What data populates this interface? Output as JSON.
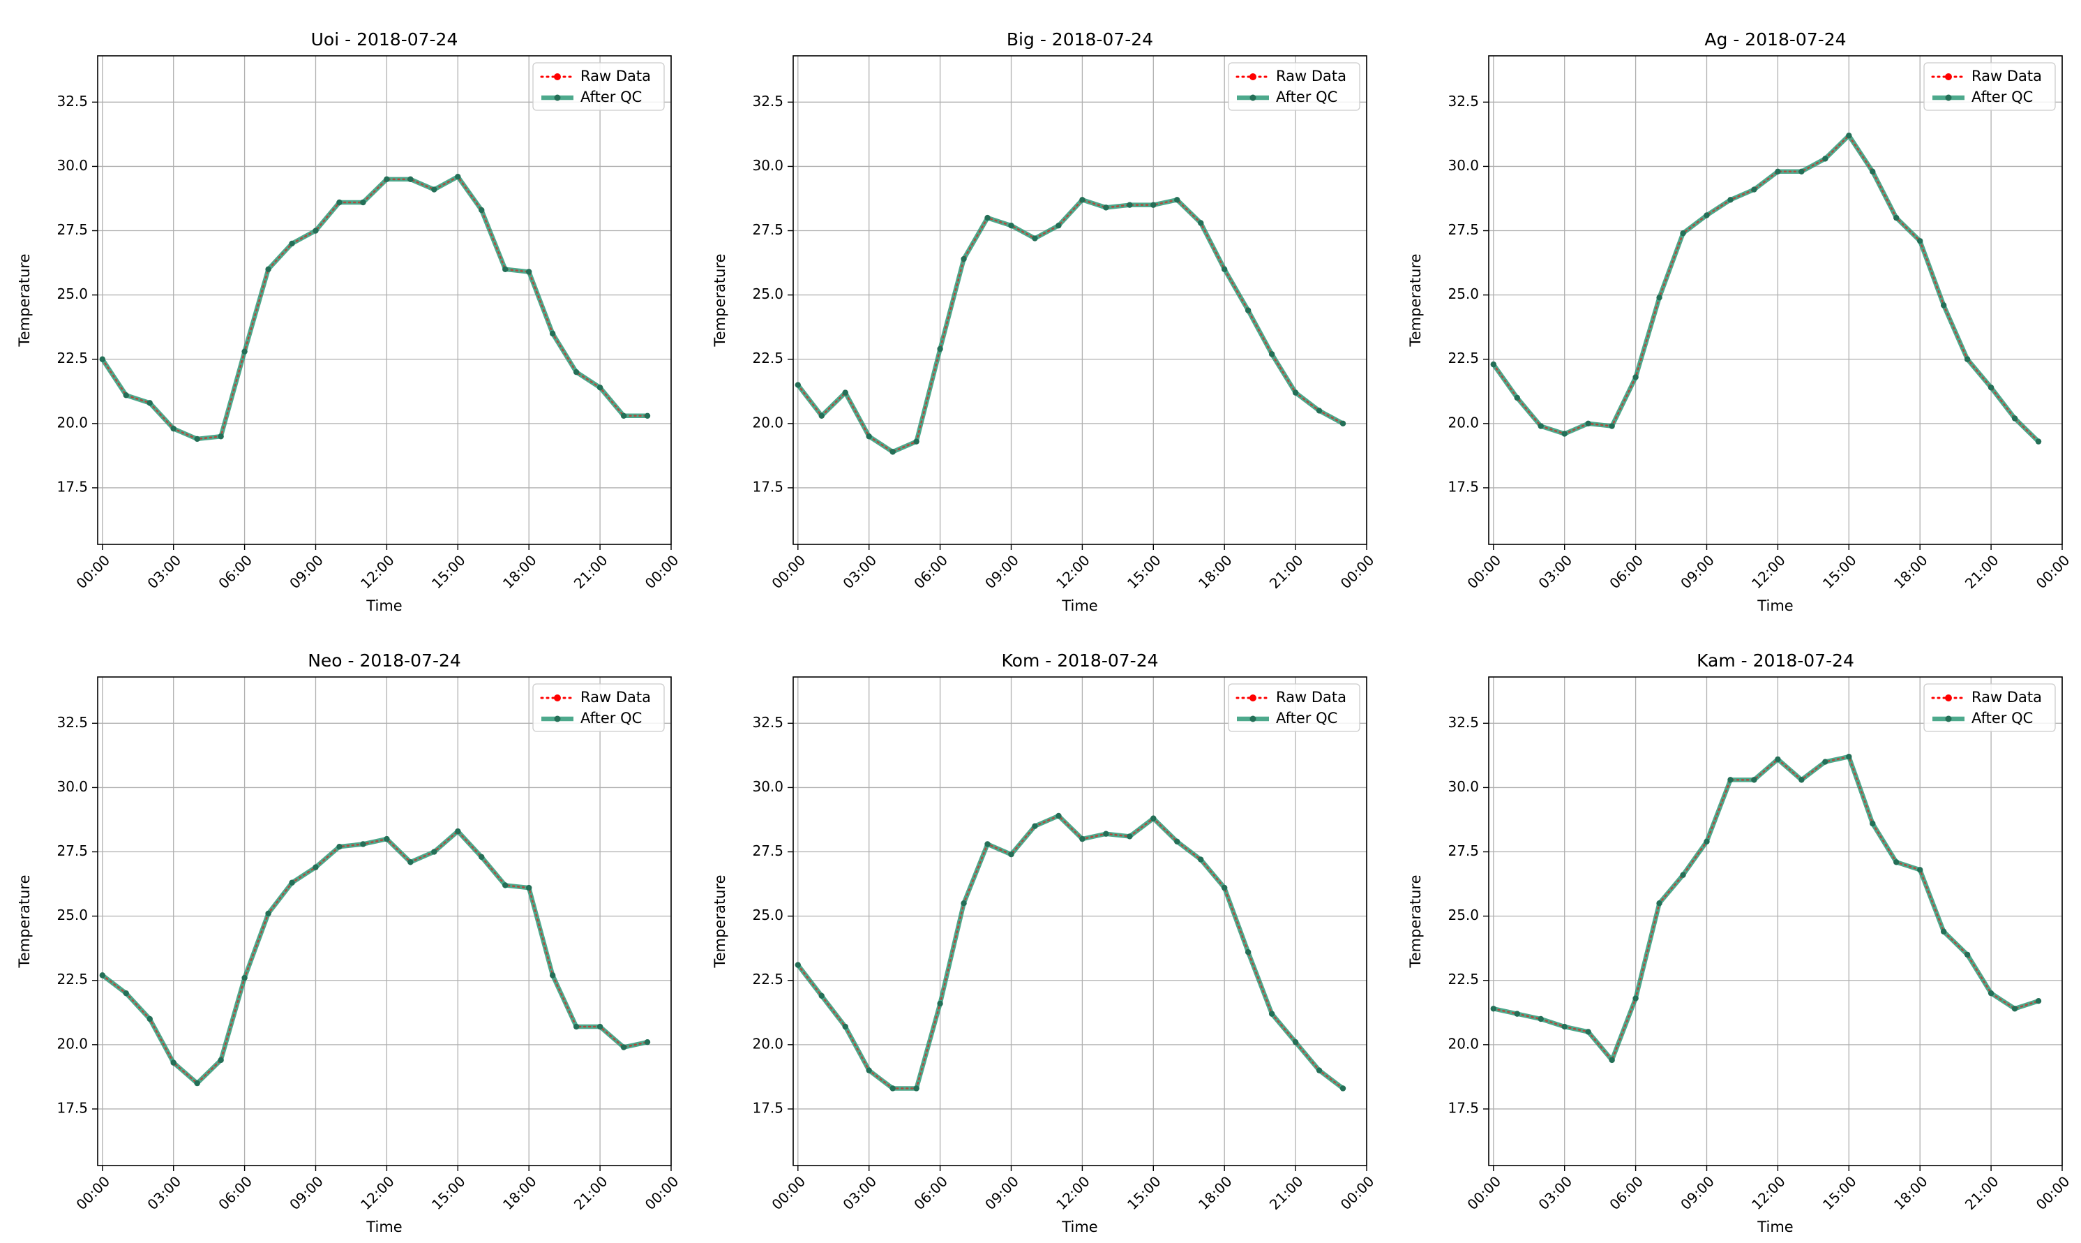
{
  "figure": {
    "colors": {
      "raw": "#ff0000",
      "qc": "#2e9a78",
      "qc_marker": "#246f57",
      "grid": "#b0b0b0",
      "axes": "#000000"
    }
  },
  "chart_data": [
    {
      "type": "line",
      "title": "Uoi - 2018-07-24",
      "xlabel": "Time",
      "ylabel": "Temperature",
      "x_unit": "hour",
      "xlim": [
        -0.2,
        24
      ],
      "ylim": [
        15.3,
        34.3
      ],
      "xticks": [
        0,
        3,
        6,
        9,
        12,
        15,
        18,
        21,
        24
      ],
      "xticklabels": [
        "00:00",
        "03:00",
        "06:00",
        "09:00",
        "12:00",
        "15:00",
        "18:00",
        "21:00",
        "00:00"
      ],
      "yticks": [
        17.5,
        20.0,
        22.5,
        25.0,
        27.5,
        30.0,
        32.5
      ],
      "yticklabels": [
        "17.5",
        "20.0",
        "22.5",
        "25.0",
        "27.5",
        "30.0",
        "32.5"
      ],
      "grid": true,
      "legend": "upper right",
      "x": [
        0,
        1,
        2,
        3,
        4,
        5,
        6,
        7,
        8,
        9,
        10,
        11,
        12,
        13,
        14,
        15,
        16,
        17,
        18,
        19,
        20,
        21,
        22,
        23
      ],
      "series": [
        {
          "name": "Raw Data",
          "values": [
            22.5,
            21.1,
            20.8,
            19.8,
            19.4,
            19.5,
            22.8,
            26.0,
            27.0,
            27.5,
            28.6,
            28.6,
            29.5,
            29.5,
            29.1,
            29.6,
            28.3,
            26.0,
            25.9,
            23.5,
            22.0,
            21.4,
            20.3,
            20.3
          ]
        },
        {
          "name": "After QC",
          "values": [
            22.5,
            21.1,
            20.8,
            19.8,
            19.4,
            19.5,
            22.8,
            26.0,
            27.0,
            27.5,
            28.6,
            28.6,
            29.5,
            29.5,
            29.1,
            29.6,
            28.3,
            26.0,
            25.9,
            23.5,
            22.0,
            21.4,
            20.3,
            20.3
          ]
        }
      ]
    },
    {
      "type": "line",
      "title": "Big - 2018-07-24",
      "xlabel": "Time",
      "ylabel": "Temperature",
      "x_unit": "hour",
      "xlim": [
        -0.2,
        24
      ],
      "ylim": [
        15.3,
        34.3
      ],
      "xticks": [
        0,
        3,
        6,
        9,
        12,
        15,
        18,
        21,
        24
      ],
      "xticklabels": [
        "00:00",
        "03:00",
        "06:00",
        "09:00",
        "12:00",
        "15:00",
        "18:00",
        "21:00",
        "00:00"
      ],
      "yticks": [
        17.5,
        20.0,
        22.5,
        25.0,
        27.5,
        30.0,
        32.5
      ],
      "yticklabels": [
        "17.5",
        "20.0",
        "22.5",
        "25.0",
        "27.5",
        "30.0",
        "32.5"
      ],
      "grid": true,
      "legend": "upper right",
      "x": [
        0,
        1,
        2,
        3,
        4,
        5,
        6,
        7,
        8,
        9,
        10,
        11,
        12,
        13,
        14,
        15,
        16,
        17,
        18,
        19,
        20,
        21,
        22,
        23
      ],
      "series": [
        {
          "name": "Raw Data",
          "values": [
            21.5,
            20.3,
            21.2,
            19.5,
            18.9,
            19.3,
            22.9,
            26.4,
            28.0,
            27.7,
            27.2,
            27.7,
            28.7,
            28.4,
            28.5,
            28.5,
            28.7,
            27.8,
            26.0,
            24.4,
            22.7,
            21.2,
            20.5,
            20.0
          ]
        },
        {
          "name": "After QC",
          "values": [
            21.5,
            20.3,
            21.2,
            19.5,
            18.9,
            19.3,
            22.9,
            26.4,
            28.0,
            27.7,
            27.2,
            27.7,
            28.7,
            28.4,
            28.5,
            28.5,
            28.7,
            27.8,
            26.0,
            24.4,
            22.7,
            21.2,
            20.5,
            20.0
          ]
        }
      ]
    },
    {
      "type": "line",
      "title": "Ag - 2018-07-24",
      "xlabel": "Time",
      "ylabel": "Temperature",
      "x_unit": "hour",
      "xlim": [
        -0.2,
        24
      ],
      "ylim": [
        15.3,
        34.3
      ],
      "xticks": [
        0,
        3,
        6,
        9,
        12,
        15,
        18,
        21,
        24
      ],
      "xticklabels": [
        "00:00",
        "03:00",
        "06:00",
        "09:00",
        "12:00",
        "15:00",
        "18:00",
        "21:00",
        "00:00"
      ],
      "yticks": [
        17.5,
        20.0,
        22.5,
        25.0,
        27.5,
        30.0,
        32.5
      ],
      "yticklabels": [
        "17.5",
        "20.0",
        "22.5",
        "25.0",
        "27.5",
        "30.0",
        "32.5"
      ],
      "grid": true,
      "legend": "upper right",
      "x": [
        0,
        1,
        2,
        3,
        4,
        5,
        6,
        7,
        8,
        9,
        10,
        11,
        12,
        13,
        14,
        15,
        16,
        17,
        18,
        19,
        20,
        21,
        22,
        23
      ],
      "series": [
        {
          "name": "Raw Data",
          "values": [
            22.3,
            21.0,
            19.9,
            19.6,
            20.0,
            19.9,
            21.8,
            24.9,
            27.4,
            28.1,
            28.7,
            29.1,
            29.8,
            29.8,
            30.3,
            31.2,
            29.8,
            28.0,
            27.1,
            24.6,
            22.5,
            21.4,
            20.2,
            19.3
          ]
        },
        {
          "name": "After QC",
          "values": [
            22.3,
            21.0,
            19.9,
            19.6,
            20.0,
            19.9,
            21.8,
            24.9,
            27.4,
            28.1,
            28.7,
            29.1,
            29.8,
            29.8,
            30.3,
            31.2,
            29.8,
            28.0,
            27.1,
            24.6,
            22.5,
            21.4,
            20.2,
            19.3
          ]
        }
      ]
    },
    {
      "type": "line",
      "title": "Neo - 2018-07-24",
      "xlabel": "Time",
      "ylabel": "Temperature",
      "x_unit": "hour",
      "xlim": [
        -0.2,
        24
      ],
      "ylim": [
        15.3,
        34.3
      ],
      "xticks": [
        0,
        3,
        6,
        9,
        12,
        15,
        18,
        21,
        24
      ],
      "xticklabels": [
        "00:00",
        "03:00",
        "06:00",
        "09:00",
        "12:00",
        "15:00",
        "18:00",
        "21:00",
        "00:00"
      ],
      "yticks": [
        17.5,
        20.0,
        22.5,
        25.0,
        27.5,
        30.0,
        32.5
      ],
      "yticklabels": [
        "17.5",
        "20.0",
        "22.5",
        "25.0",
        "27.5",
        "30.0",
        "32.5"
      ],
      "grid": true,
      "legend": "upper right",
      "x": [
        0,
        1,
        2,
        3,
        4,
        5,
        6,
        7,
        8,
        9,
        10,
        11,
        12,
        13,
        14,
        15,
        16,
        17,
        18,
        19,
        20,
        21,
        22,
        23
      ],
      "series": [
        {
          "name": "Raw Data",
          "values": [
            22.7,
            22.0,
            21.0,
            19.3,
            18.5,
            19.4,
            22.6,
            25.1,
            26.3,
            26.9,
            27.7,
            27.8,
            28.0,
            27.1,
            27.5,
            28.3,
            27.3,
            26.2,
            26.1,
            22.7,
            20.7,
            20.7,
            19.9,
            20.1
          ]
        },
        {
          "name": "After QC",
          "values": [
            22.7,
            22.0,
            21.0,
            19.3,
            18.5,
            19.4,
            22.6,
            25.1,
            26.3,
            26.9,
            27.7,
            27.8,
            28.0,
            27.1,
            27.5,
            28.3,
            27.3,
            26.2,
            26.1,
            22.7,
            20.7,
            20.7,
            19.9,
            20.1
          ]
        }
      ]
    },
    {
      "type": "line",
      "title": "Kom - 2018-07-24",
      "xlabel": "Time",
      "ylabel": "Temperature",
      "x_unit": "hour",
      "xlim": [
        -0.2,
        24
      ],
      "ylim": [
        15.3,
        34.3
      ],
      "xticks": [
        0,
        3,
        6,
        9,
        12,
        15,
        18,
        21,
        24
      ],
      "xticklabels": [
        "00:00",
        "03:00",
        "06:00",
        "09:00",
        "12:00",
        "15:00",
        "18:00",
        "21:00",
        "00:00"
      ],
      "yticks": [
        17.5,
        20.0,
        22.5,
        25.0,
        27.5,
        30.0,
        32.5
      ],
      "yticklabels": [
        "17.5",
        "20.0",
        "22.5",
        "25.0",
        "27.5",
        "30.0",
        "32.5"
      ],
      "grid": true,
      "legend": "upper right",
      "x": [
        0,
        1,
        2,
        3,
        4,
        5,
        6,
        7,
        8,
        9,
        10,
        11,
        12,
        13,
        14,
        15,
        16,
        17,
        18,
        19,
        20,
        21,
        22,
        23
      ],
      "series": [
        {
          "name": "Raw Data",
          "values": [
            23.1,
            21.9,
            20.7,
            19.0,
            18.3,
            18.3,
            21.6,
            25.5,
            27.8,
            27.4,
            28.5,
            28.9,
            28.0,
            28.2,
            28.1,
            28.8,
            27.9,
            27.2,
            26.1,
            23.6,
            21.2,
            20.1,
            19.0,
            18.3
          ]
        },
        {
          "name": "After QC",
          "values": [
            23.1,
            21.9,
            20.7,
            19.0,
            18.3,
            18.3,
            21.6,
            25.5,
            27.8,
            27.4,
            28.5,
            28.9,
            28.0,
            28.2,
            28.1,
            28.8,
            27.9,
            27.2,
            26.1,
            23.6,
            21.2,
            20.1,
            19.0,
            18.3
          ]
        }
      ]
    },
    {
      "type": "line",
      "title": "Kam - 2018-07-24",
      "xlabel": "Time",
      "ylabel": "Temperature",
      "x_unit": "hour",
      "xlim": [
        -0.2,
        24
      ],
      "ylim": [
        15.3,
        34.3
      ],
      "xticks": [
        0,
        3,
        6,
        9,
        12,
        15,
        18,
        21,
        24
      ],
      "xticklabels": [
        "00:00",
        "03:00",
        "06:00",
        "09:00",
        "12:00",
        "15:00",
        "18:00",
        "21:00",
        "00:00"
      ],
      "yticks": [
        17.5,
        20.0,
        22.5,
        25.0,
        27.5,
        30.0,
        32.5
      ],
      "yticklabels": [
        "17.5",
        "20.0",
        "22.5",
        "25.0",
        "27.5",
        "30.0",
        "32.5"
      ],
      "grid": true,
      "legend": "upper right",
      "x": [
        0,
        1,
        2,
        3,
        4,
        5,
        6,
        7,
        8,
        9,
        10,
        11,
        12,
        13,
        14,
        15,
        16,
        17,
        18,
        19,
        20,
        21,
        22,
        23
      ],
      "series": [
        {
          "name": "Raw Data",
          "values": [
            21.4,
            21.2,
            21.0,
            20.7,
            20.5,
            19.4,
            21.8,
            25.5,
            26.6,
            27.9,
            30.3,
            30.3,
            31.1,
            30.3,
            31.0,
            31.2,
            28.6,
            27.1,
            26.8,
            24.4,
            23.5,
            22.0,
            21.4,
            21.7
          ]
        },
        {
          "name": "After QC",
          "values": [
            21.4,
            21.2,
            21.0,
            20.7,
            20.5,
            19.4,
            21.8,
            25.5,
            26.6,
            27.9,
            30.3,
            30.3,
            31.1,
            30.3,
            31.0,
            31.2,
            28.6,
            27.1,
            26.8,
            24.4,
            23.5,
            22.0,
            21.4,
            21.7
          ]
        }
      ]
    }
  ]
}
